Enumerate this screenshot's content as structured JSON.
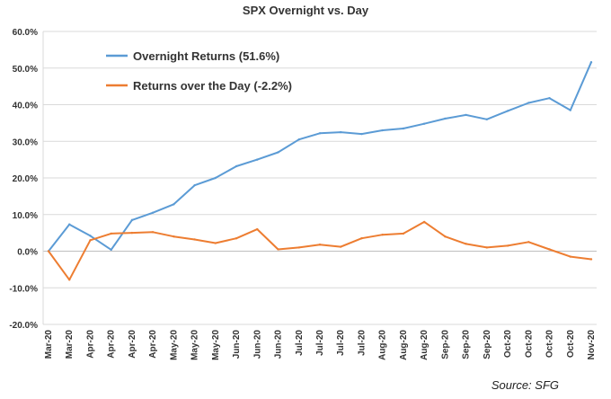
{
  "chart_data": {
    "type": "line",
    "title": "SPX Overnight vs. Day",
    "source": "Source: SFG",
    "ylim": [
      -0.2,
      0.6
    ],
    "y_ticks": [
      "-20.0%",
      "-10.0%",
      "0.0%",
      "10.0%",
      "20.0%",
      "30.0%",
      "40.0%",
      "50.0%",
      "60.0%"
    ],
    "y_tick_values": [
      -0.2,
      -0.1,
      0.0,
      0.1,
      0.2,
      0.3,
      0.4,
      0.5,
      0.6
    ],
    "x_ticks": [
      "Mar-20",
      "Mar-20",
      "Apr-20",
      "Apr-20",
      "Apr-20",
      "Apr-20",
      "May-20",
      "May-20",
      "May-20",
      "Jun-20",
      "Jun-20",
      "Jun-20",
      "Jul-20",
      "Jul-20",
      "Jul-20",
      "Jul-20",
      "Aug-20",
      "Aug-20",
      "Aug-20",
      "Sep-20",
      "Sep-20",
      "Sep-20",
      "Oct-20",
      "Oct-20",
      "Oct-20",
      "Oct-20",
      "Nov-20"
    ],
    "x": [
      0,
      1,
      2,
      3,
      4,
      5,
      6,
      7,
      8,
      9,
      10,
      11,
      12,
      13,
      14,
      15,
      16,
      17,
      18,
      19,
      20,
      21,
      22,
      23,
      24,
      25,
      26
    ],
    "series": [
      {
        "name": "Overnight Returns (51.6%)",
        "color": "#5b9bd5",
        "values": [
          0.0,
          0.073,
          0.042,
          0.004,
          0.085,
          0.105,
          0.128,
          0.18,
          0.2,
          0.232,
          0.25,
          0.27,
          0.305,
          0.322,
          0.325,
          0.32,
          0.33,
          0.335,
          0.348,
          0.362,
          0.372,
          0.36,
          0.383,
          0.405,
          0.418,
          0.385,
          0.516
        ]
      },
      {
        "name": "Returns over the Day (-2.2%)",
        "color": "#ed7d31",
        "values": [
          0.0,
          -0.078,
          0.03,
          0.048,
          0.05,
          0.052,
          0.04,
          0.032,
          0.022,
          0.035,
          0.06,
          0.005,
          0.01,
          0.018,
          0.012,
          0.035,
          0.045,
          0.048,
          0.08,
          0.04,
          0.02,
          0.01,
          0.015,
          0.025,
          0.005,
          -0.015,
          -0.022
        ]
      }
    ]
  }
}
